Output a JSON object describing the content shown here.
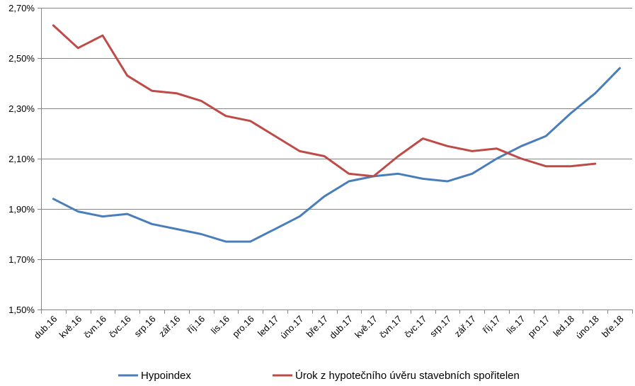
{
  "chart_data": {
    "type": "line",
    "title": "",
    "xlabel": "",
    "ylabel": "",
    "ylim": [
      1.5,
      2.7
    ],
    "y_tick_values": [
      1.5,
      1.7,
      1.9,
      2.1,
      2.3,
      2.5,
      2.7
    ],
    "y_tick_labels": [
      "1,50%",
      "1,70%",
      "1,90%",
      "2,10%",
      "2,30%",
      "2,50%",
      "2,70%"
    ],
    "grid": true,
    "legend_position": "bottom",
    "categories": [
      "dub.16",
      "kvě.16",
      "čvn.16",
      "čvc.16",
      "srp.16",
      "zář.16",
      "říj.16",
      "lis.16",
      "pro.16",
      "led.17",
      "úno.17",
      "bře.17",
      "dub.17",
      "kvě.17",
      "čvn.17",
      "čvc.17",
      "srp.17",
      "zář.17",
      "říj.17",
      "lis.17",
      "pro.17",
      "led.18",
      "úno.18",
      "bře.18"
    ],
    "series": [
      {
        "name": "Hypoindex",
        "color": "#4A7EBB",
        "values": [
          1.94,
          1.89,
          1.87,
          1.88,
          1.84,
          1.82,
          1.8,
          1.77,
          1.77,
          1.82,
          1.87,
          1.95,
          2.01,
          2.03,
          2.04,
          2.02,
          2.01,
          2.04,
          2.1,
          2.15,
          2.19,
          2.28,
          2.36,
          2.46
        ]
      },
      {
        "name": "Úrok z hypotečního úvěru stavebních spořitelen",
        "color": "#BE4B48",
        "values": [
          2.63,
          2.54,
          2.59,
          2.43,
          2.37,
          2.36,
          2.33,
          2.27,
          2.25,
          2.19,
          2.13,
          2.11,
          2.04,
          2.03,
          2.11,
          2.18,
          2.15,
          2.13,
          2.14,
          2.1,
          2.07,
          2.07,
          2.08,
          null
        ]
      }
    ]
  }
}
